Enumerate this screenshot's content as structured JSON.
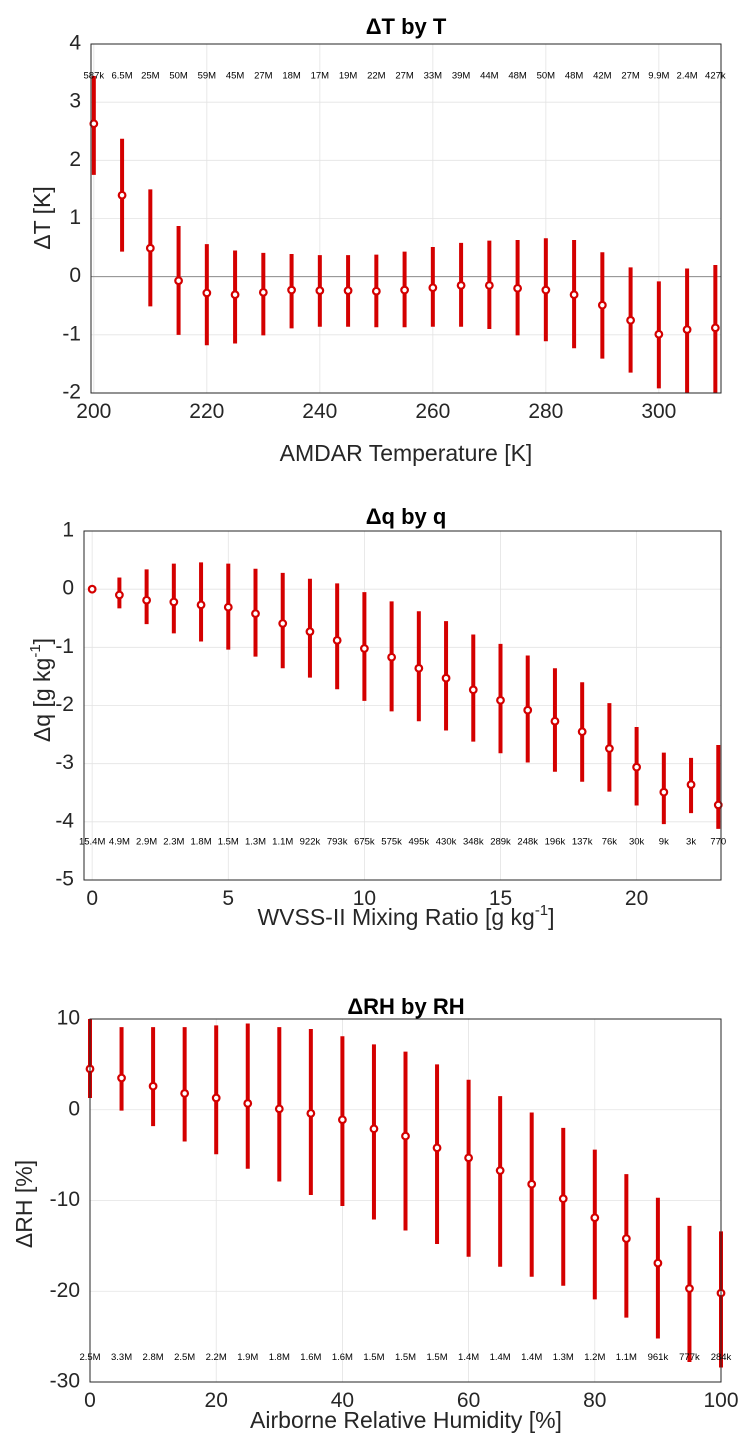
{
  "chart_data": [
    {
      "type": "errorbar",
      "title": "ΔT by T",
      "xlabel": "AMDAR Temperature [K]",
      "ylabel": "ΔT [K]",
      "xlim": [
        199.5,
        311
      ],
      "ylim": [
        -2,
        4
      ],
      "xticks": [
        200,
        220,
        240,
        260,
        280,
        300
      ],
      "xtick_labels": [
        "200",
        "220",
        "240",
        "260",
        "280",
        "300"
      ],
      "yticks": [
        -2,
        -1,
        0,
        1,
        2,
        3,
        4
      ],
      "ytick_labels": [
        "-2",
        "-1",
        "0",
        "1",
        "2",
        "3",
        "4"
      ],
      "zero_line": true,
      "grid": true,
      "count_label_y": 3.45,
      "x": [
        200,
        205,
        210,
        215,
        220,
        225,
        230,
        235,
        240,
        245,
        250,
        255,
        260,
        265,
        270,
        275,
        280,
        285,
        290,
        295,
        300,
        305,
        310
      ],
      "mean": [
        2.63,
        1.4,
        0.49,
        -0.07,
        -0.28,
        -0.31,
        -0.27,
        -0.23,
        -0.24,
        -0.24,
        -0.25,
        -0.23,
        -0.19,
        -0.15,
        -0.15,
        -0.2,
        -0.23,
        -0.31,
        -0.49,
        -0.75,
        -0.99,
        -0.91,
        -0.88
      ],
      "lower": [
        1.75,
        0.43,
        -0.51,
        -1.0,
        -1.18,
        -1.15,
        -1.01,
        -0.89,
        -0.86,
        -0.86,
        -0.87,
        -0.87,
        -0.86,
        -0.86,
        -0.9,
        -1.01,
        -1.11,
        -1.23,
        -1.41,
        -1.65,
        -1.92,
        -2.0,
        -2.0
      ],
      "upper": [
        3.45,
        2.37,
        1.5,
        0.87,
        0.56,
        0.45,
        0.41,
        0.39,
        0.37,
        0.37,
        0.38,
        0.43,
        0.51,
        0.58,
        0.62,
        0.63,
        0.66,
        0.63,
        0.42,
        0.16,
        -0.08,
        0.14,
        0.2
      ],
      "counts": [
        "587k",
        "6.5M",
        "25M",
        "50M",
        "59M",
        "45M",
        "27M",
        "18M",
        "17M",
        "19M",
        "22M",
        "27M",
        "33M",
        "39M",
        "44M",
        "48M",
        "50M",
        "48M",
        "42M",
        "27M",
        "9.9M",
        "2.4M",
        "427k"
      ],
      "colors": {
        "series": "#d40000",
        "grid": "#e3e3e3",
        "zero": "#8c8c8c"
      }
    },
    {
      "type": "errorbar",
      "title": "Δq by q",
      "xlabel": "WVSS-II Mixing Ratio [g kg",
      "xlabel_sup": "-1",
      "xlabel_end": "]",
      "ylabel": "Δq [g kg",
      "ylabel_sup": "-1",
      "ylabel_end": "]",
      "xlim": [
        -0.3,
        23.1
      ],
      "ylim": [
        -5,
        1
      ],
      "xticks": [
        0,
        5,
        10,
        15,
        20
      ],
      "xtick_labels": [
        "0",
        "5",
        "10",
        "15",
        "20"
      ],
      "yticks": [
        -5,
        -4,
        -3,
        -2,
        -1,
        0,
        1
      ],
      "ytick_labels": [
        "-5",
        "-4",
        "-3",
        "-2",
        "-1",
        "0",
        "1"
      ],
      "zero_line": false,
      "grid": true,
      "count_label_y": -4.35,
      "x": [
        0,
        1,
        2,
        3,
        4,
        5,
        6,
        7,
        8,
        9,
        10,
        11,
        12,
        13,
        14,
        15,
        16,
        17,
        18,
        19,
        20,
        21,
        22,
        23
      ],
      "mean": [
        0.0,
        -0.1,
        -0.19,
        -0.22,
        -0.27,
        -0.31,
        -0.42,
        -0.59,
        -0.73,
        -0.88,
        -1.02,
        -1.17,
        -1.36,
        -1.53,
        -1.73,
        -1.91,
        -2.08,
        -2.27,
        -2.45,
        -2.74,
        -3.06,
        -3.49,
        -3.36,
        -3.71
      ],
      "lower": [
        0.0,
        -0.33,
        -0.6,
        -0.76,
        -0.9,
        -1.04,
        -1.16,
        -1.36,
        -1.52,
        -1.72,
        -1.92,
        -2.1,
        -2.27,
        -2.43,
        -2.62,
        -2.82,
        -2.98,
        -3.14,
        -3.31,
        -3.48,
        -3.72,
        -4.04,
        -3.85,
        -4.12
      ],
      "upper": [
        0.0,
        0.2,
        0.34,
        0.44,
        0.46,
        0.44,
        0.35,
        0.28,
        0.18,
        0.1,
        -0.05,
        -0.21,
        -0.38,
        -0.55,
        -0.78,
        -0.94,
        -1.14,
        -1.36,
        -1.6,
        -1.96,
        -2.37,
        -2.81,
        -2.9,
        -2.68
      ],
      "counts": [
        "15.4M",
        "4.9M",
        "2.9M",
        "2.3M",
        "1.8M",
        "1.5M",
        "1.3M",
        "1.1M",
        "922k",
        "793k",
        "675k",
        "575k",
        "495k",
        "430k",
        "348k",
        "289k",
        "248k",
        "196k",
        "137k",
        "76k",
        "30k",
        "9k",
        "3k",
        "770"
      ],
      "colors": {
        "series": "#d40000",
        "grid": "#e3e3e3"
      }
    },
    {
      "type": "errorbar",
      "title": "ΔRH by RH",
      "xlabel": "Airborne Relative Humidity [%]",
      "ylabel": "ΔRH [%]",
      "xlim": [
        0,
        100
      ],
      "ylim": [
        -30,
        10
      ],
      "xticks": [
        0,
        20,
        40,
        60,
        80,
        100
      ],
      "xtick_labels": [
        "0",
        "20",
        "40",
        "60",
        "80",
        "100"
      ],
      "yticks": [
        -30,
        -20,
        -10,
        0,
        10
      ],
      "ytick_labels": [
        "-30",
        "-20",
        "-10",
        "0",
        "10"
      ],
      "zero_line": false,
      "grid": true,
      "count_label_y": -27.3,
      "x": [
        0,
        5,
        10,
        15,
        20,
        25,
        30,
        35,
        40,
        45,
        50,
        55,
        60,
        65,
        70,
        75,
        80,
        85,
        90,
        95,
        100
      ],
      "mean": [
        4.5,
        3.5,
        2.6,
        1.8,
        1.3,
        0.7,
        0.1,
        -0.4,
        -1.1,
        -2.1,
        -2.9,
        -4.2,
        -5.3,
        -6.7,
        -8.2,
        -9.8,
        -11.9,
        -14.2,
        -16.9,
        -19.7,
        -20.2
      ],
      "lower": [
        1.3,
        -0.1,
        -1.8,
        -3.5,
        -4.9,
        -6.5,
        -7.9,
        -9.4,
        -10.6,
        -12.1,
        -13.3,
        -14.8,
        -16.2,
        -17.3,
        -18.4,
        -19.4,
        -20.9,
        -22.9,
        -25.2,
        -27.8,
        -28.4
      ],
      "upper": [
        10.0,
        9.1,
        9.1,
        9.1,
        9.3,
        9.5,
        9.1,
        8.9,
        8.1,
        7.2,
        6.4,
        5.0,
        3.3,
        1.5,
        -0.3,
        -2.0,
        -4.4,
        -7.1,
        -9.7,
        -12.8,
        -13.4
      ],
      "counts": [
        "2.5M",
        "3.3M",
        "2.8M",
        "2.5M",
        "2.2M",
        "1.9M",
        "1.8M",
        "1.6M",
        "1.6M",
        "1.5M",
        "1.5M",
        "1.5M",
        "1.4M",
        "1.4M",
        "1.4M",
        "1.3M",
        "1.2M",
        "1.1M",
        "961k",
        "777k",
        "284k"
      ],
      "colors": {
        "series": "#d40000",
        "grid": "#e3e3e3"
      }
    }
  ]
}
